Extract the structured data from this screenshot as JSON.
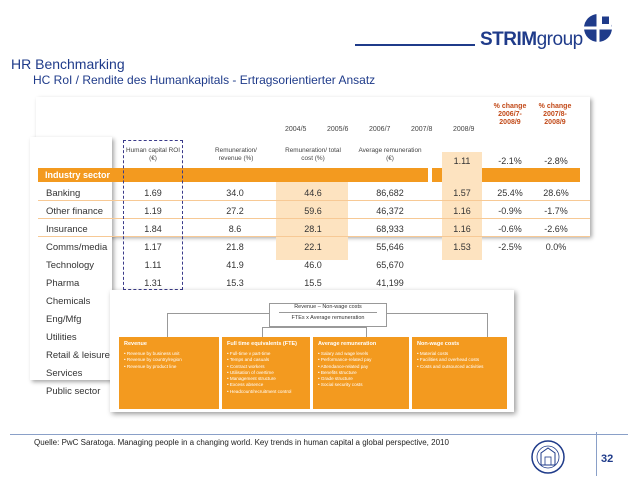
{
  "header": {
    "title": "HR Benchmarking",
    "subtitle": "HC RoI / Rendite des Humankapitals - Ertragsorientierter Ansatz",
    "logo_strong": "STRIM",
    "logo_light": "group"
  },
  "table": {
    "years": [
      "2004/5",
      "2005/6",
      "2006/7",
      "2007/8",
      "2008/9"
    ],
    "pct_headers": [
      "% change 2006/7-2008/9",
      "% change 2007/8-2008/9"
    ],
    "col_headers": [
      "Human capital ROI (€)",
      "Remuneration/ revenue (%)",
      "Remuneration/ total cost (%)",
      "Average remuneration (€)"
    ],
    "sector_header": "Industry sector",
    "rows": [
      {
        "label": "Banking",
        "roi": "1.69",
        "rev": "34.0",
        "cost": "44.6",
        "avg": "86,682"
      },
      {
        "label": "Other finance",
        "roi": "1.19",
        "rev": "27.2",
        "cost": "59.6",
        "avg": "46,372"
      },
      {
        "label": "Insurance",
        "roi": "1.84",
        "rev": "8.6",
        "cost": "28.1",
        "avg": "68,933"
      },
      {
        "label": "Comms/media",
        "roi": "1.17",
        "rev": "21.8",
        "cost": "22.1",
        "avg": "55,646"
      },
      {
        "label": "Technology",
        "roi": "1.11",
        "rev": "41.9",
        "cost": "46.0",
        "avg": "65,670"
      },
      {
        "label": "Pharma",
        "roi": "1.31",
        "rev": "15.3",
        "cost": "15.5",
        "avg": "41,199"
      },
      {
        "label": "Chemicals",
        "roi": "",
        "rev": "",
        "cost": "",
        "avg": ""
      },
      {
        "label": "Eng/Mfg",
        "roi": "",
        "rev": "",
        "cost": "",
        "avg": ""
      },
      {
        "label": "Utilities",
        "roi": "",
        "rev": "",
        "cost": "",
        "avg": ""
      },
      {
        "label": "Retail & leisure",
        "roi": "",
        "rev": "",
        "cost": "",
        "avg": ""
      },
      {
        "label": "Services",
        "roi": "",
        "rev": "",
        "cost": "",
        "avg": ""
      },
      {
        "label": "Public sector",
        "roi": "",
        "rev": "",
        "cost": "",
        "avg": ""
      }
    ],
    "right_rows": [
      {
        "v2008": "1.11",
        "c1": "-2.1%",
        "c2": "-2.8%"
      },
      {
        "v2008": "1.57",
        "c1": "25.4%",
        "c2": "28.6%"
      },
      {
        "v2008": "1.16",
        "c1": "-0.9%",
        "c2": "-1.7%"
      },
      {
        "v2008": "1.16",
        "c1": "-0.6%",
        "c2": "-2.6%"
      },
      {
        "v2008": "1.53",
        "c1": "-2.5%",
        "c2": "0.0%"
      }
    ]
  },
  "diagram": {
    "formula_top": "Revenue – Non-wage costs",
    "formula_bottom": "FTEs x Average remuneration",
    "boxes": [
      {
        "title": "Revenue",
        "items": [
          "Revenue by business unit",
          "Revenue by country/region",
          "Revenue by product line"
        ]
      },
      {
        "title": "Full time equivalents (FTE)",
        "items": [
          "Full-time v part-time",
          "Temps and casuals",
          "Contract workers",
          "Utilisation of overtime",
          "Management structure",
          "Excess absence",
          "Headcount/recruitment control"
        ]
      },
      {
        "title": "Average remuneration",
        "items": [
          "Salary and wage levels",
          "Performance-related pay",
          "Attendance-related pay",
          "Benefits structure",
          "Grade structure",
          "Social security costs"
        ]
      },
      {
        "title": "Non-wage costs",
        "items": [
          "Material costs",
          "Facilities and overhead costs",
          "Costs and outsourced activities"
        ]
      }
    ]
  },
  "footer": {
    "source": "Quelle: PwC Saratoga. Managing people in a changing world. Key trends in human capital a global perspective, 2010",
    "page": "32"
  },
  "colors": {
    "brand": "#1f3b8a",
    "accent": "#f39a1f",
    "accent_light": "#fde3c0"
  }
}
